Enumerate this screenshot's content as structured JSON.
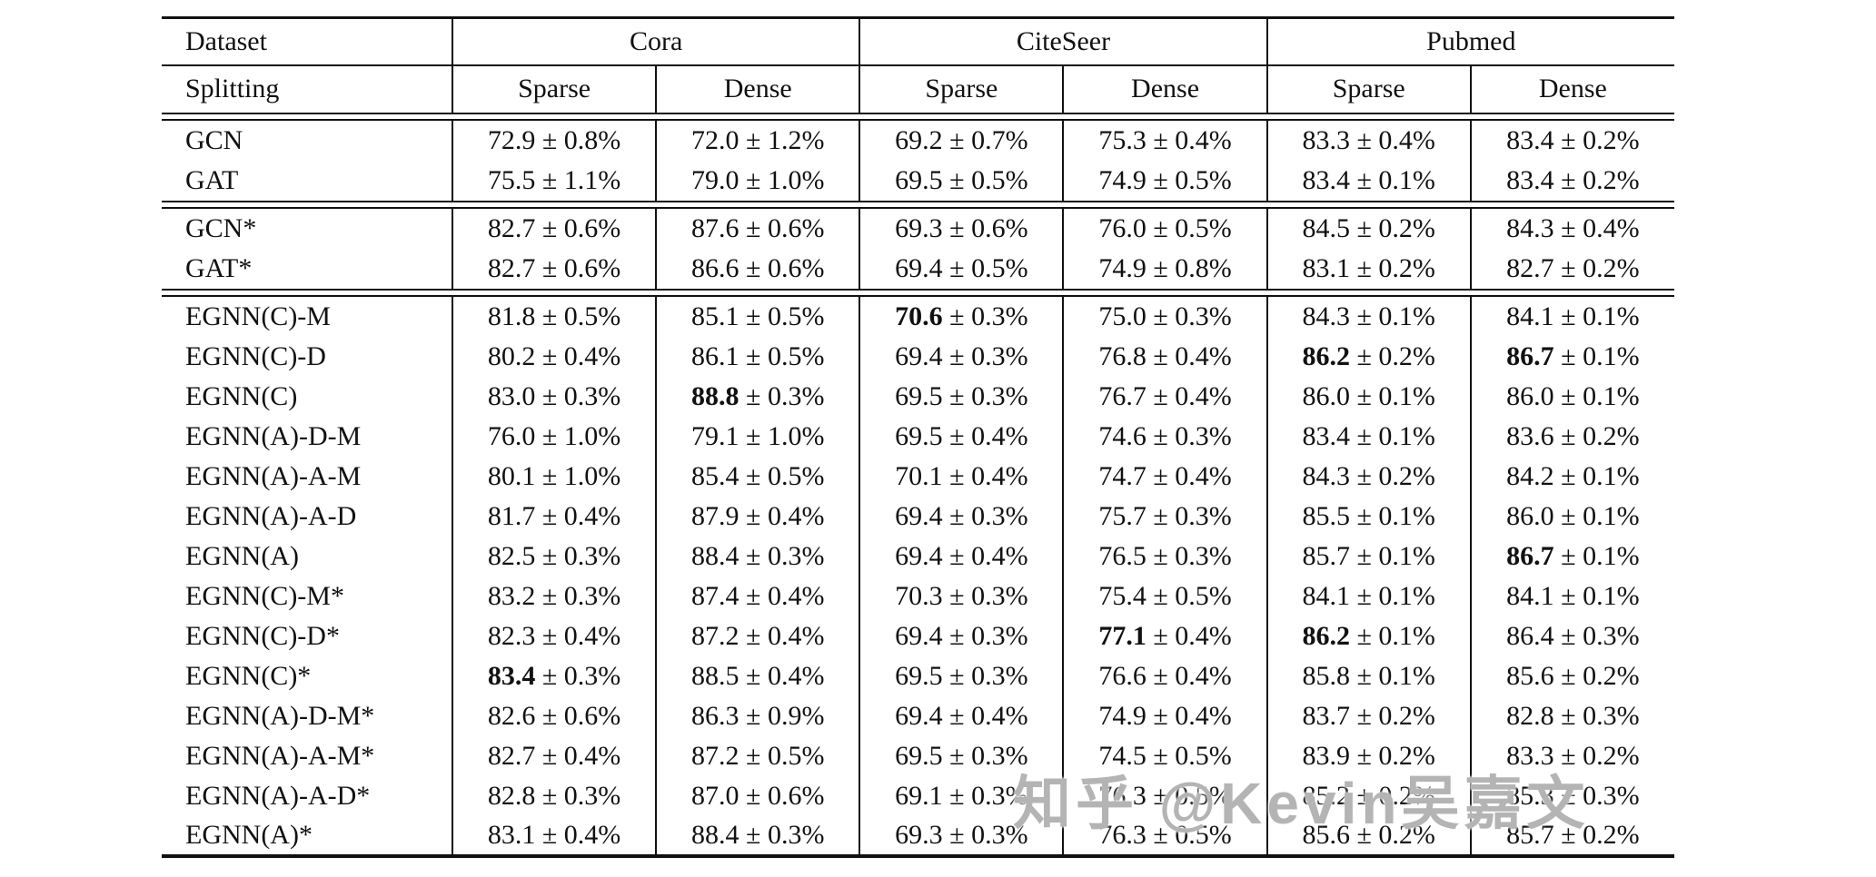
{
  "header": {
    "dataset_label": "Dataset",
    "splitting_label": "Splitting",
    "groups": [
      "Cora",
      "CiteSeer",
      "Pubmed"
    ],
    "split_cols": [
      "Sparse",
      "Dense",
      "Sparse",
      "Dense",
      "Sparse",
      "Dense"
    ]
  },
  "sections": [
    {
      "rows": [
        {
          "model": "GCN",
          "cells": [
            {
              "v": "72.9",
              "e": "± 0.8%"
            },
            {
              "v": "72.0",
              "e": "± 1.2%"
            },
            {
              "v": "69.2",
              "e": "± 0.7%"
            },
            {
              "v": "75.3",
              "e": "± 0.4%"
            },
            {
              "v": "83.3",
              "e": "± 0.4%"
            },
            {
              "v": "83.4",
              "e": "± 0.2%"
            }
          ]
        },
        {
          "model": "GAT",
          "cells": [
            {
              "v": "75.5",
              "e": "± 1.1%"
            },
            {
              "v": "79.0",
              "e": "± 1.0%"
            },
            {
              "v": "69.5",
              "e": "± 0.5%"
            },
            {
              "v": "74.9",
              "e": "± 0.5%"
            },
            {
              "v": "83.4",
              "e": "± 0.1%"
            },
            {
              "v": "83.4",
              "e": "± 0.2%"
            }
          ]
        }
      ]
    },
    {
      "rows": [
        {
          "model": "GCN*",
          "cells": [
            {
              "v": "82.7",
              "e": "± 0.6%"
            },
            {
              "v": "87.6",
              "e": "± 0.6%"
            },
            {
              "v": "69.3",
              "e": "± 0.6%"
            },
            {
              "v": "76.0",
              "e": "± 0.5%"
            },
            {
              "v": "84.5",
              "e": "± 0.2%"
            },
            {
              "v": "84.3",
              "e": "± 0.4%"
            }
          ]
        },
        {
          "model": "GAT*",
          "cells": [
            {
              "v": "82.7",
              "e": "± 0.6%"
            },
            {
              "v": "86.6",
              "e": "± 0.6%"
            },
            {
              "v": "69.4",
              "e": "± 0.5%"
            },
            {
              "v": "74.9",
              "e": "± 0.8%"
            },
            {
              "v": "83.1",
              "e": "± 0.2%"
            },
            {
              "v": "82.7",
              "e": "± 0.2%"
            }
          ]
        }
      ]
    },
    {
      "rows": [
        {
          "model": "EGNN(C)-M",
          "cells": [
            {
              "v": "81.8",
              "e": "± 0.5%"
            },
            {
              "v": "85.1",
              "e": "± 0.5%"
            },
            {
              "v": "70.6",
              "e": "± 0.3%",
              "bold": true
            },
            {
              "v": "75.0",
              "e": "± 0.3%"
            },
            {
              "v": "84.3",
              "e": "± 0.1%"
            },
            {
              "v": "84.1",
              "e": "± 0.1%"
            }
          ]
        },
        {
          "model": "EGNN(C)-D",
          "cells": [
            {
              "v": "80.2",
              "e": "± 0.4%"
            },
            {
              "v": "86.1",
              "e": "± 0.5%"
            },
            {
              "v": "69.4",
              "e": "± 0.3%"
            },
            {
              "v": "76.8",
              "e": "± 0.4%"
            },
            {
              "v": "86.2",
              "e": "± 0.2%",
              "bold": true
            },
            {
              "v": "86.7",
              "e": "± 0.1%",
              "bold": true
            }
          ]
        },
        {
          "model": "EGNN(C)",
          "cells": [
            {
              "v": "83.0",
              "e": "± 0.3%"
            },
            {
              "v": "88.8",
              "e": "± 0.3%",
              "bold": true
            },
            {
              "v": "69.5",
              "e": "± 0.3%"
            },
            {
              "v": "76.7",
              "e": "± 0.4%"
            },
            {
              "v": "86.0",
              "e": "± 0.1%"
            },
            {
              "v": "86.0",
              "e": "± 0.1%"
            }
          ]
        },
        {
          "model": "EGNN(A)-D-M",
          "cells": [
            {
              "v": "76.0",
              "e": "± 1.0%"
            },
            {
              "v": "79.1",
              "e": "± 1.0%"
            },
            {
              "v": "69.5",
              "e": "± 0.4%"
            },
            {
              "v": "74.6",
              "e": "± 0.3%"
            },
            {
              "v": "83.4",
              "e": "± 0.1%"
            },
            {
              "v": "83.6",
              "e": "± 0.2%"
            }
          ]
        },
        {
          "model": "EGNN(A)-A-M",
          "cells": [
            {
              "v": "80.1",
              "e": "± 1.0%"
            },
            {
              "v": "85.4",
              "e": "± 0.5%"
            },
            {
              "v": "70.1",
              "e": "± 0.4%"
            },
            {
              "v": "74.7",
              "e": "± 0.4%"
            },
            {
              "v": "84.3",
              "e": "± 0.2%"
            },
            {
              "v": "84.2",
              "e": "± 0.1%"
            }
          ]
        },
        {
          "model": "EGNN(A)-A-D",
          "cells": [
            {
              "v": "81.7",
              "e": "± 0.4%"
            },
            {
              "v": "87.9",
              "e": "± 0.4%"
            },
            {
              "v": "69.4",
              "e": "± 0.3%"
            },
            {
              "v": "75.7",
              "e": "± 0.3%"
            },
            {
              "v": "85.5",
              "e": "± 0.1%"
            },
            {
              "v": "86.0",
              "e": "± 0.1%"
            }
          ]
        },
        {
          "model": "EGNN(A)",
          "cells": [
            {
              "v": "82.5",
              "e": "± 0.3%"
            },
            {
              "v": "88.4",
              "e": "± 0.3%"
            },
            {
              "v": "69.4",
              "e": "± 0.4%"
            },
            {
              "v": "76.5",
              "e": "± 0.3%"
            },
            {
              "v": "85.7",
              "e": "± 0.1%"
            },
            {
              "v": "86.7",
              "e": "± 0.1%",
              "bold": true
            }
          ]
        },
        {
          "model": "EGNN(C)-M*",
          "cells": [
            {
              "v": "83.2",
              "e": "± 0.3%"
            },
            {
              "v": "87.4",
              "e": "± 0.4%"
            },
            {
              "v": "70.3",
              "e": "± 0.3%"
            },
            {
              "v": "75.4",
              "e": "± 0.5%"
            },
            {
              "v": "84.1",
              "e": "± 0.1%"
            },
            {
              "v": "84.1",
              "e": "± 0.1%"
            }
          ]
        },
        {
          "model": "EGNN(C)-D*",
          "cells": [
            {
              "v": "82.3",
              "e": "± 0.4%"
            },
            {
              "v": "87.2",
              "e": "± 0.4%"
            },
            {
              "v": "69.4",
              "e": "± 0.3%"
            },
            {
              "v": "77.1",
              "e": "± 0.4%",
              "bold": true
            },
            {
              "v": "86.2",
              "e": "± 0.1%",
              "bold": true
            },
            {
              "v": "86.4",
              "e": "± 0.3%"
            }
          ]
        },
        {
          "model": "EGNN(C)*",
          "cells": [
            {
              "v": "83.4",
              "e": "± 0.3%",
              "bold": true
            },
            {
              "v": "88.5",
              "e": "± 0.4%"
            },
            {
              "v": "69.5",
              "e": "± 0.3%"
            },
            {
              "v": "76.6",
              "e": "± 0.4%"
            },
            {
              "v": "85.8",
              "e": "± 0.1%"
            },
            {
              "v": "85.6",
              "e": "± 0.2%"
            }
          ]
        },
        {
          "model": "EGNN(A)-D-M*",
          "cells": [
            {
              "v": "82.6",
              "e": "± 0.6%"
            },
            {
              "v": "86.3",
              "e": "± 0.9%"
            },
            {
              "v": "69.4",
              "e": "± 0.4%"
            },
            {
              "v": "74.9",
              "e": "± 0.4%"
            },
            {
              "v": "83.7",
              "e": "± 0.2%"
            },
            {
              "v": "82.8",
              "e": "± 0.3%"
            }
          ]
        },
        {
          "model": "EGNN(A)-A-M*",
          "cells": [
            {
              "v": "82.7",
              "e": "± 0.4%"
            },
            {
              "v": "87.2",
              "e": "± 0.5%"
            },
            {
              "v": "69.5",
              "e": "± 0.3%"
            },
            {
              "v": "74.5",
              "e": "± 0.5%"
            },
            {
              "v": "83.9",
              "e": "± 0.2%"
            },
            {
              "v": "83.3",
              "e": "± 0.2%"
            }
          ]
        },
        {
          "model": "EGNN(A)-A-D*",
          "cells": [
            {
              "v": "82.8",
              "e": "± 0.3%"
            },
            {
              "v": "87.0",
              "e": "± 0.6%"
            },
            {
              "v": "69.1",
              "e": "± 0.3%"
            },
            {
              "v": "76.3",
              "e": "± 0.5%"
            },
            {
              "v": "85.2",
              "e": "± 0.2%"
            },
            {
              "v": "85.3",
              "e": "± 0.3%"
            }
          ]
        },
        {
          "model": "EGNN(A)*",
          "cells": [
            {
              "v": "83.1",
              "e": "± 0.4%"
            },
            {
              "v": "88.4",
              "e": "± 0.3%"
            },
            {
              "v": "69.3",
              "e": "± 0.3%"
            },
            {
              "v": "76.3",
              "e": "± 0.5%"
            },
            {
              "v": "85.6",
              "e": "± 0.2%"
            },
            {
              "v": "85.7",
              "e": "± 0.2%"
            }
          ]
        }
      ]
    }
  ],
  "watermark": {
    "text": "知乎 @Kevin吴嘉文",
    "color": "#b4b4b4"
  }
}
